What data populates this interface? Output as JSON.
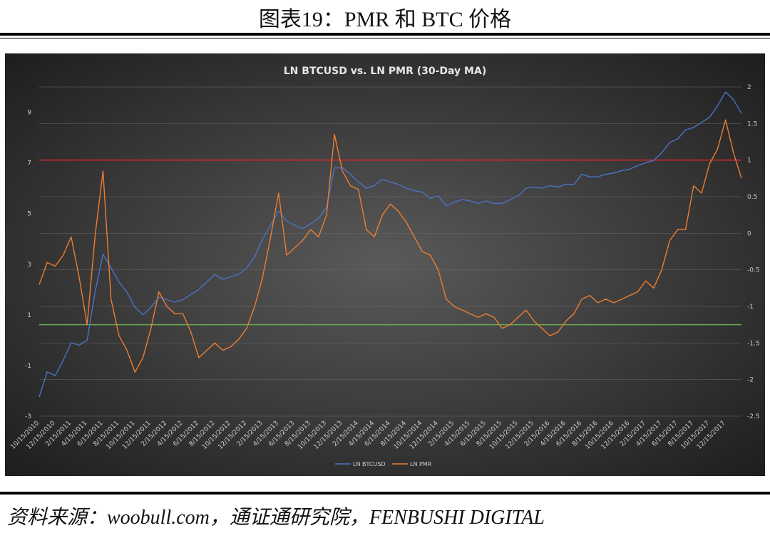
{
  "header": {
    "title": "图表19：PMR 和 BTC 价格"
  },
  "footer": {
    "source": "资料来源：woobull.com，通证通研究院，FENBUSHI DIGITAL"
  },
  "chart_data": {
    "type": "line",
    "title": "LN BTCUSD vs. LN PMR (30-Day MA)",
    "categories": [
      "10/15/2010",
      null,
      "12/15/2010",
      null,
      "2/15/2011",
      null,
      "4/15/2011",
      null,
      "6/15/2011",
      null,
      "8/15/2011",
      null,
      "10/15/2011",
      null,
      "12/15/2011",
      null,
      "2/15/2012",
      null,
      "4/15/2012",
      null,
      "6/15/2012",
      null,
      "8/15/2012",
      null,
      "10/15/2012",
      null,
      "12/15/2012",
      null,
      "2/15/2013",
      null,
      "4/15/2013",
      null,
      "6/15/2013",
      null,
      "8/15/2013",
      null,
      "10/15/2013",
      null,
      "12/15/2013",
      null,
      "2/15/2014",
      null,
      "4/15/2014",
      null,
      "6/15/2014",
      null,
      "8/15/2014",
      null,
      "10/15/2014",
      null,
      "12/15/2014",
      null,
      "2/15/2015",
      null,
      "4/15/2015",
      null,
      "6/15/2015",
      null,
      "8/15/2015",
      null,
      "10/15/2015",
      null,
      "12/15/2015",
      null,
      "2/15/2016",
      null,
      "4/15/2016",
      null,
      "6/15/2016",
      null,
      "8/15/2016",
      null,
      "10/15/2016",
      null,
      "12/15/2016",
      null,
      "2/15/2017",
      null,
      "4/15/2017",
      null,
      "6/15/2017",
      null,
      "8/15/2017",
      null,
      "10/15/2017",
      null,
      "12/15/2017",
      null,
      null
    ],
    "series": [
      {
        "name": "LN BTCUSD",
        "color": "#4a72c4",
        "values": [
          -2.24,
          -1.25,
          -1.4,
          -0.8,
          -0.1,
          -0.2,
          0.0,
          1.9,
          3.4,
          2.85,
          2.3,
          1.9,
          1.3,
          1.0,
          1.3,
          1.7,
          1.6,
          1.5,
          1.6,
          1.8,
          2.0,
          2.3,
          2.6,
          2.4,
          2.5,
          2.6,
          2.85,
          3.3,
          4.0,
          4.55,
          5.1,
          4.7,
          4.55,
          4.4,
          4.6,
          4.8,
          5.25,
          6.8,
          6.8,
          6.55,
          6.25,
          6.0,
          6.1,
          6.35,
          6.25,
          6.15,
          6.0,
          5.9,
          5.85,
          5.6,
          5.7,
          5.3,
          5.45,
          5.55,
          5.5,
          5.4,
          5.5,
          5.4,
          5.4,
          5.55,
          5.7,
          6.0,
          6.05,
          6.0,
          6.1,
          6.05,
          6.15,
          6.15,
          6.55,
          6.45,
          6.45,
          6.55,
          6.6,
          6.7,
          6.75,
          6.9,
          7.0,
          7.1,
          7.4,
          7.8,
          7.95,
          8.3,
          8.4,
          8.6,
          8.8,
          9.25,
          9.8,
          9.5,
          8.95
        ]
      },
      {
        "name": "LN PMR",
        "color": "#ed7d31",
        "axis": "y2",
        "values": [
          -0.7,
          -0.4,
          -0.45,
          -0.3,
          -0.05,
          -0.6,
          -1.25,
          -0.03,
          0.85,
          -0.9,
          -1.4,
          -1.6,
          -1.9,
          -1.7,
          -1.3,
          -0.8,
          -1.0,
          -1.1,
          -1.1,
          -1.35,
          -1.7,
          -1.6,
          -1.5,
          -1.6,
          -1.55,
          -1.45,
          -1.3,
          -1.0,
          -0.6,
          -0.05,
          0.55,
          -0.3,
          -0.2,
          -0.1,
          0.05,
          -0.05,
          0.25,
          1.35,
          0.85,
          0.65,
          0.6,
          0.05,
          -0.05,
          0.25,
          0.4,
          0.3,
          0.15,
          -0.05,
          -0.25,
          -0.3,
          -0.5,
          -0.9,
          -1.0,
          -1.05,
          -1.1,
          -1.15,
          -1.1,
          -1.15,
          -1.3,
          -1.25,
          -1.15,
          -1.05,
          -1.2,
          -1.3,
          -1.4,
          -1.35,
          -1.2,
          -1.1,
          -0.9,
          -0.85,
          -0.95,
          -0.9,
          -0.95,
          -0.9,
          -0.85,
          -0.8,
          -0.65,
          -0.75,
          -0.5,
          -0.1,
          0.05,
          0.05,
          0.65,
          0.55,
          0.95,
          1.15,
          1.55,
          1.1,
          0.75
        ]
      }
    ],
    "ylim": [
      -3,
      10
    ],
    "yticks": [
      -3,
      -1,
      1,
      3,
      5,
      7,
      9
    ],
    "y2lim": [
      -2.5,
      2
    ],
    "y2ticks": [
      -2.5,
      -2,
      -1.5,
      -1,
      -0.5,
      0,
      0.5,
      1,
      1.5,
      2
    ],
    "reference_lines": [
      {
        "axis": "y2",
        "value": 1,
        "color": "#d42a2a"
      },
      {
        "axis": "y2",
        "value": -1.25,
        "color": "#6aa84f"
      }
    ],
    "grid": true,
    "legend": "bottom"
  }
}
